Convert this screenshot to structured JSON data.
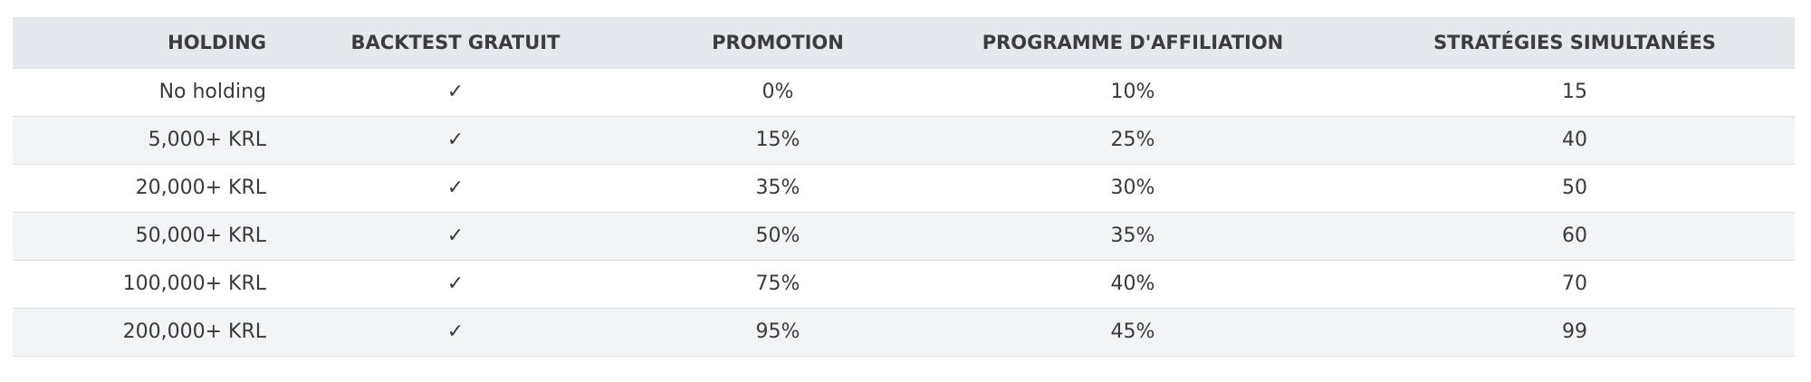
{
  "table": {
    "headers": {
      "holding": "HOLDING",
      "backtest": "BACKTEST GRATUIT",
      "promotion": "PROMOTION",
      "affiliation": "PROGRAMME D'AFFILIATION",
      "strategies": "STRATÉGIES SIMULTANÉES"
    },
    "rows": [
      {
        "holding": "No holding",
        "backtest": "✓",
        "promotion": "0%",
        "affiliation": "10%",
        "strategies": "15"
      },
      {
        "holding": "5,000+ KRL",
        "backtest": "✓",
        "promotion": "15%",
        "affiliation": "25%",
        "strategies": "40"
      },
      {
        "holding": "20,000+ KRL",
        "backtest": "✓",
        "promotion": "35%",
        "affiliation": "30%",
        "strategies": "50"
      },
      {
        "holding": "50,000+ KRL",
        "backtest": "✓",
        "promotion": "50%",
        "affiliation": "35%",
        "strategies": "60"
      },
      {
        "holding": "100,000+ KRL",
        "backtest": "✓",
        "promotion": "75%",
        "affiliation": "40%",
        "strategies": "70"
      },
      {
        "holding": "200,000+ KRL",
        "backtest": "✓",
        "promotion": "95%",
        "affiliation": "45%",
        "strategies": "99"
      }
    ]
  },
  "colors": {
    "header_bg": "#e5e8ec",
    "row_alt_bg": "#f3f4f6",
    "row_bg": "#ffffff",
    "text": "#3a3a3a"
  }
}
